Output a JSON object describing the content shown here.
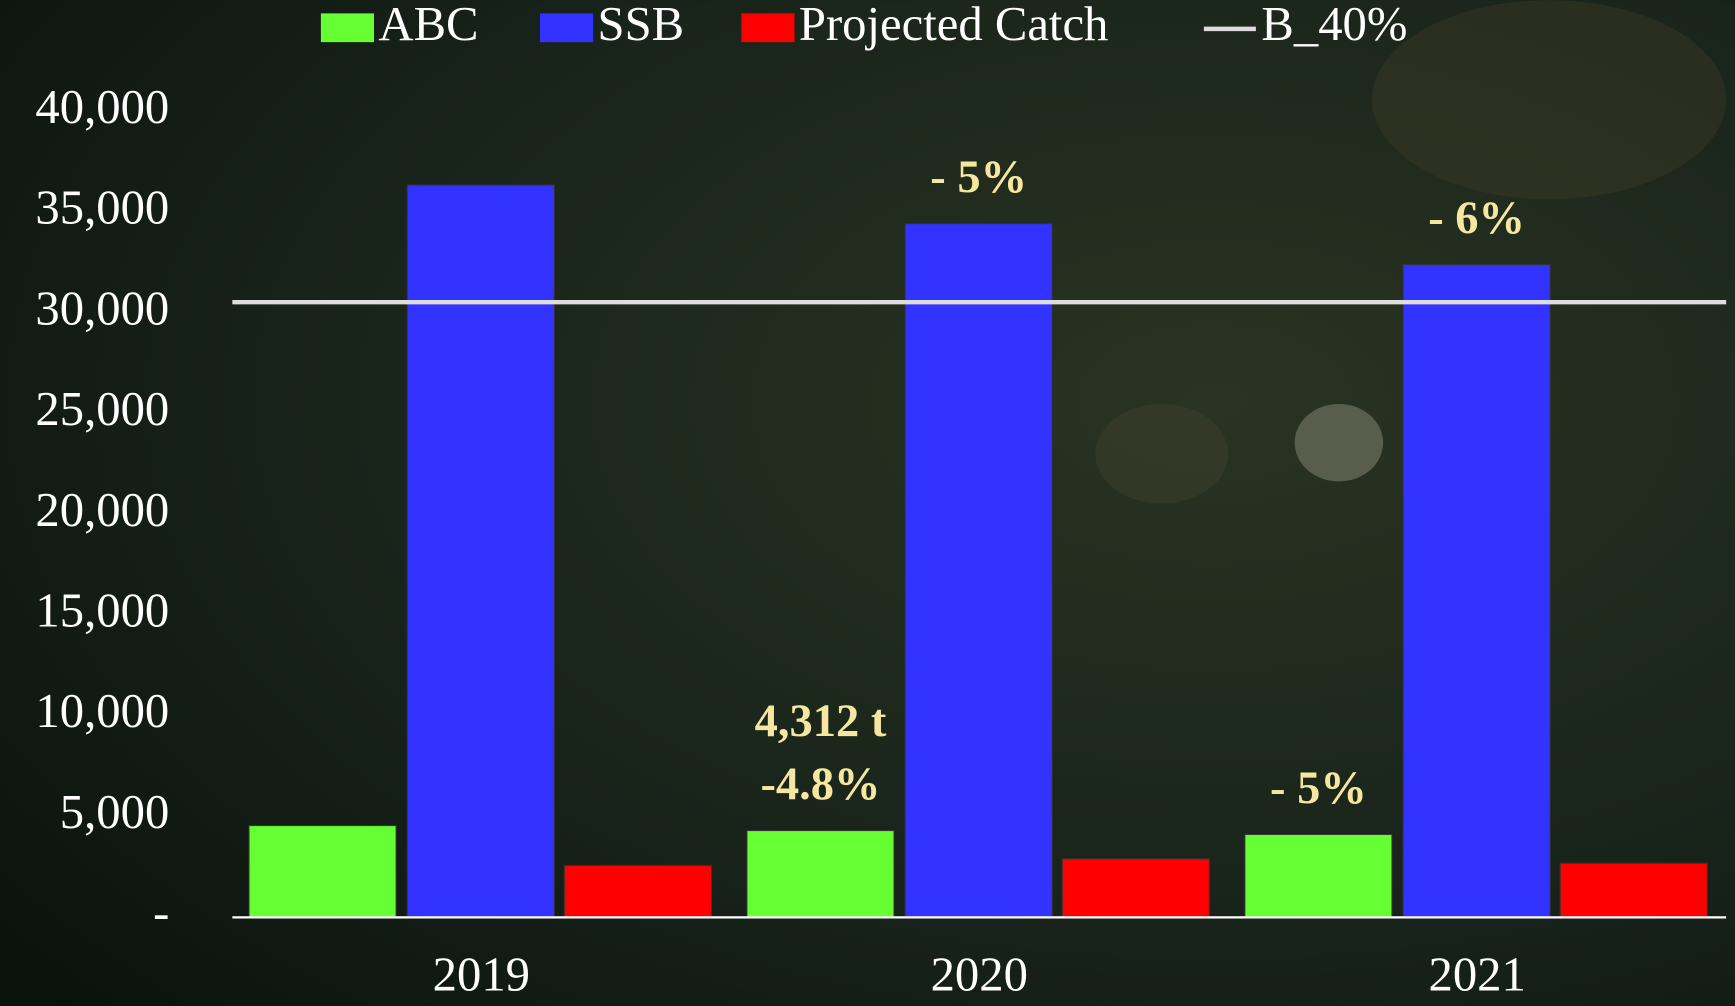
{
  "chart_data": {
    "type": "bar",
    "categories": [
      "2019",
      "2020",
      "2021"
    ],
    "series": [
      {
        "name": "ABC",
        "color": "#66ff33",
        "values": [
          4560,
          4312,
          4120
        ]
      },
      {
        "name": "SSB",
        "color": "#3333ff",
        "values": [
          36370,
          34450,
          32420
        ]
      },
      {
        "name": "Projected Catch",
        "color": "#ff0000",
        "values": [
          2580,
          2910,
          2690
        ]
      }
    ],
    "reference_lines": [
      {
        "name": "B_40%",
        "color": "#dddddd",
        "value": 30550
      }
    ],
    "ylim": [
      0,
      40000
    ],
    "yticks": [
      {
        "value": 0,
        "label": "-"
      },
      {
        "value": 5000,
        "label": "5,000"
      },
      {
        "value": 10000,
        "label": "10,000"
      },
      {
        "value": 15000,
        "label": "15,000"
      },
      {
        "value": 20000,
        "label": "20,000"
      },
      {
        "value": 25000,
        "label": "25,000"
      },
      {
        "value": 30000,
        "label": "30,000"
      },
      {
        "value": 35000,
        "label": "35,000"
      },
      {
        "value": 40000,
        "label": "40,000"
      }
    ],
    "annotations": [
      "- 5%",
      "- 6%",
      "4,312 t",
      "-4.8%",
      "- 5%"
    ],
    "grid": false,
    "legend": "top"
  }
}
